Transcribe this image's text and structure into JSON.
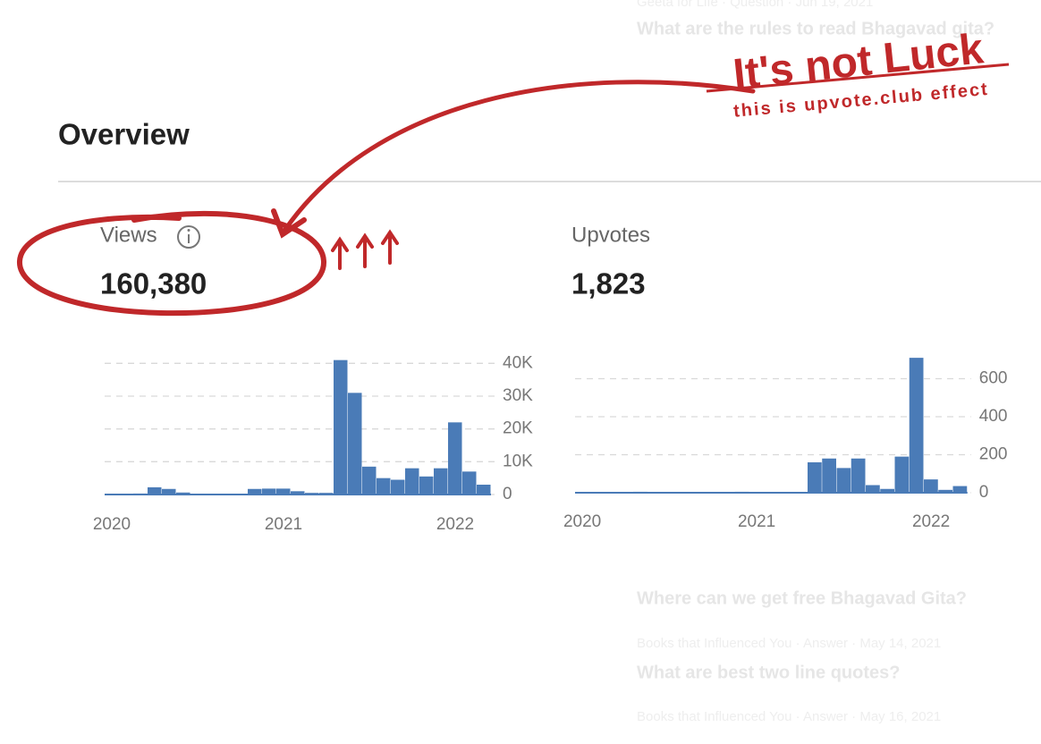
{
  "background_items": [
    {
      "meta": "Geeta for Life · Question · Jun 19, 2021",
      "title": "What are the rules to read Bhagavad gita?"
    },
    {
      "title": "Where can we get free Bhagavad Gita?"
    },
    {
      "meta": "Books that Influenced You · Answer · May 14, 2021",
      "title": "What are best two line quotes?"
    },
    {
      "meta": "Books that Influenced You · Answer · May 16, 2021"
    }
  ],
  "annotation": {
    "headline": "It's not Luck",
    "subline": "this is upvote.club effect"
  },
  "overview": {
    "title": "Overview"
  },
  "chart_data": [
    {
      "type": "bar",
      "title": "Views",
      "total": {
        "value": 160380,
        "label": "160,380"
      },
      "color": "#4a7bb7",
      "categories": [
        "2020",
        null,
        null,
        null,
        null,
        null,
        null,
        null,
        null,
        null,
        null,
        null,
        "2021",
        null,
        null,
        null,
        null,
        null,
        null,
        null,
        null,
        null,
        null,
        null,
        "2022",
        null,
        null
      ],
      "values": [
        200,
        200,
        300,
        2200,
        1700,
        600,
        200,
        100,
        100,
        100,
        1700,
        1800,
        1800,
        1000,
        500,
        500,
        41000,
        31000,
        8500,
        5000,
        4500,
        8000,
        5500,
        8000,
        22000,
        7000,
        3000
      ],
      "ylim": [
        0,
        42000
      ],
      "yticks": [
        0,
        {
          "value": 10000,
          "label": "10K"
        },
        {
          "value": 20000,
          "label": "20K"
        },
        {
          "value": 30000,
          "label": "30K"
        },
        {
          "value": 40000,
          "label": "40K"
        }
      ],
      "grid": true
    },
    {
      "type": "bar",
      "title": "Upvotes",
      "total": {
        "value": 1823,
        "label": "1,823"
      },
      "color": "#4a7bb7",
      "categories": [
        "2020",
        null,
        null,
        null,
        null,
        null,
        null,
        null,
        null,
        null,
        null,
        null,
        "2021",
        null,
        null,
        null,
        null,
        null,
        null,
        null,
        null,
        null,
        null,
        null,
        "2022",
        null,
        null
      ],
      "values": [
        0,
        0,
        0,
        0,
        5,
        0,
        0,
        0,
        0,
        0,
        0,
        5,
        0,
        0,
        0,
        0,
        160,
        180,
        130,
        180,
        40,
        20,
        190,
        710,
        70,
        15,
        35
      ],
      "ylim": [
        0,
        720
      ],
      "yticks": [
        0,
        200,
        400,
        600
      ],
      "grid": true
    }
  ]
}
